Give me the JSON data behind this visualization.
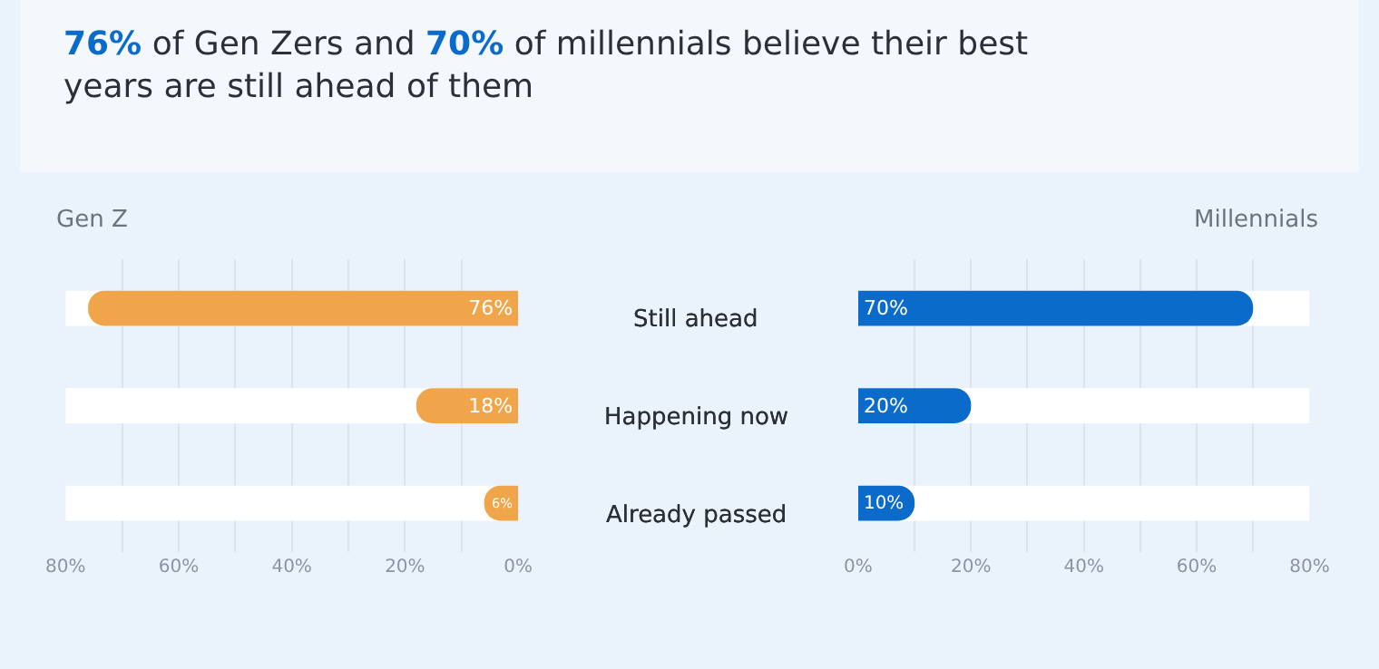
{
  "chart_data": [
    {
      "type": "bar",
      "orientation": "horizontal",
      "title": "76% of Gen Zers and 70% of millennials believe their best years are still ahead of them",
      "categories": [
        "Still ahead",
        "Happening now",
        "Already passed"
      ],
      "series": [
        {
          "name": "Gen Z",
          "color": "#f0a54a",
          "values": [
            76,
            18,
            6
          ],
          "value_labels": [
            "76%",
            "18%",
            "6%"
          ]
        }
      ],
      "xlim": [
        80,
        0
      ],
      "xticks": [
        {
          "value": 80,
          "label": "80%"
        },
        {
          "value": 70,
          "label": null
        },
        {
          "value": 60,
          "label": "60%"
        },
        {
          "value": 50,
          "label": null
        },
        {
          "value": 40,
          "label": "40%"
        },
        {
          "value": 30,
          "label": null
        },
        {
          "value": 20,
          "label": "20%"
        },
        {
          "value": 10,
          "label": null
        },
        {
          "value": 0,
          "label": "0%"
        }
      ],
      "grid": "x"
    },
    {
      "type": "bar",
      "orientation": "horizontal",
      "categories": [
        "Still ahead",
        "Happening now",
        "Already passed"
      ],
      "series": [
        {
          "name": "Millennials",
          "color": "#0b6bcb",
          "values": [
            70,
            20,
            10
          ],
          "value_labels": [
            "70%",
            "20%",
            "10%"
          ]
        }
      ],
      "xlim": [
        0,
        80
      ],
      "xticks": [
        {
          "value": 0,
          "label": "0%"
        },
        {
          "value": 10,
          "label": null
        },
        {
          "value": 20,
          "label": "20%"
        },
        {
          "value": 30,
          "label": null
        },
        {
          "value": 40,
          "label": "40%"
        },
        {
          "value": 50,
          "label": null
        },
        {
          "value": 60,
          "label": "60%"
        },
        {
          "value": 70,
          "label": null
        },
        {
          "value": 80,
          "label": "80%"
        }
      ],
      "grid": "x"
    }
  ]
}
